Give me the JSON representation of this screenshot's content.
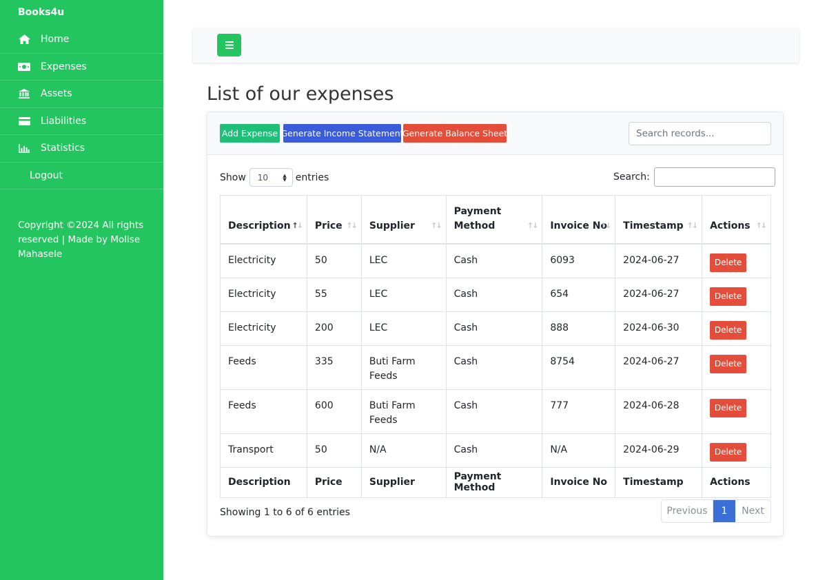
{
  "app": {
    "brand": "Books4u"
  },
  "sidebar": {
    "items": [
      {
        "label": "Home",
        "icon": "home-icon"
      },
      {
        "label": "Expenses",
        "icon": "money-icon"
      },
      {
        "label": "Assets",
        "icon": "bank-icon"
      },
      {
        "label": "Liabilities",
        "icon": "credit-card-icon"
      },
      {
        "label": "Statistics",
        "icon": "bar-chart-icon"
      },
      {
        "label": "Logout"
      }
    ],
    "copyright": "Copyright ©2024 All rights reserved | Made by Molise Mahasele"
  },
  "page": {
    "title": "List of our expenses"
  },
  "toolbar": {
    "add_label": "Add Expense",
    "income_label": "Generate Income Statement",
    "balance_label": "Generate Balance Sheet",
    "search_placeholder": "Search records..."
  },
  "table_controls": {
    "show_label": "Show",
    "entries_value": "10",
    "entries_label": "entries",
    "search_label": "Search:"
  },
  "table": {
    "headers": [
      "Description",
      "Price",
      "Supplier",
      "Payment Method",
      "Invoice No",
      "Timestamp",
      "Actions"
    ],
    "rows": [
      {
        "description": "Electricity",
        "price": "50",
        "supplier": "LEC",
        "payment": "Cash",
        "invoice": "6093",
        "timestamp": "2024-06-27",
        "action": "Delete"
      },
      {
        "description": "Electricity",
        "price": "55",
        "supplier": "LEC",
        "payment": "Cash",
        "invoice": "654",
        "timestamp": "2024-06-27",
        "action": "Delete"
      },
      {
        "description": "Electricity",
        "price": "200",
        "supplier": "LEC",
        "payment": "Cash",
        "invoice": "888",
        "timestamp": "2024-06-30",
        "action": "Delete"
      },
      {
        "description": "Feeds",
        "price": "335",
        "supplier": "Buti Farm Feeds",
        "payment": "Cash",
        "invoice": "8754",
        "timestamp": "2024-06-27",
        "action": "Delete"
      },
      {
        "description": "Feeds",
        "price": "600",
        "supplier": "Buti Farm Feeds",
        "payment": "Cash",
        "invoice": "777",
        "timestamp": "2024-06-28",
        "action": "Delete"
      },
      {
        "description": "Transport",
        "price": "50",
        "supplier": "N/A",
        "payment": "Cash",
        "invoice": "N/A",
        "timestamp": "2024-06-29",
        "action": "Delete"
      }
    ]
  },
  "footer": {
    "showing": "Showing 1 to 6 of 6 entries",
    "previous": "Previous",
    "page": "1",
    "next": "Next"
  },
  "colors": {
    "sidebar": "#22c55e",
    "primary": "#3b5bdb",
    "danger": "#e44d3a",
    "success": "#1fbf7a"
  }
}
